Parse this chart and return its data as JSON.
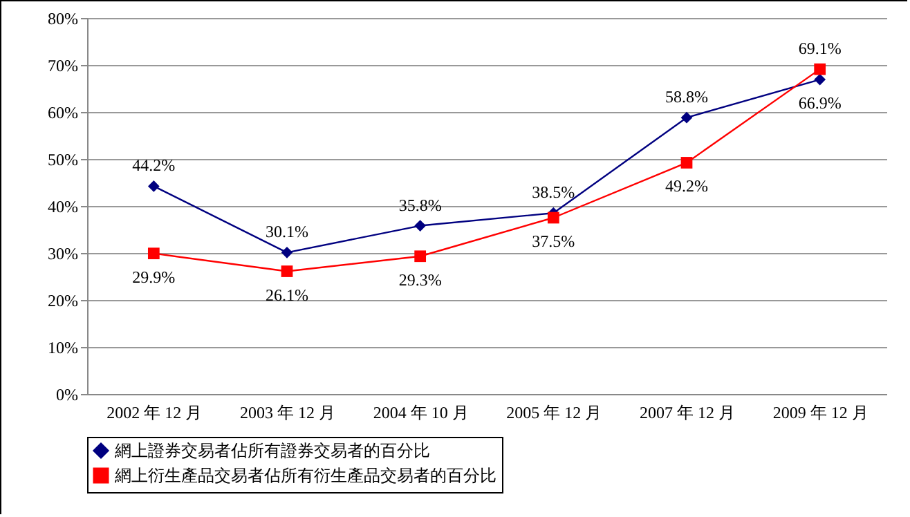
{
  "chart_data": {
    "type": "line",
    "categories": [
      "2002 年 12 月",
      "2003 年 12 月",
      "2004 年 10 月",
      "2005 年 12 月",
      "2007 年 12 月",
      "2009 年 12 月"
    ],
    "series": [
      {
        "name": "網上證券交易者佔所有證券交易者的百分比",
        "color": "#000080",
        "marker": "diamond",
        "values": [
          44.2,
          30.1,
          35.8,
          38.5,
          58.8,
          66.9
        ],
        "value_labels": [
          "44.2%",
          "30.1%",
          "35.8%",
          "38.5%",
          "58.8%",
          "66.9%"
        ]
      },
      {
        "name": "網上衍生產品交易者佔所有衍生產品交易者的百分比",
        "color": "#ff0000",
        "marker": "square",
        "values": [
          29.9,
          26.1,
          29.3,
          37.5,
          49.2,
          69.1
        ],
        "value_labels": [
          "29.9%",
          "26.1%",
          "29.3%",
          "37.5%",
          "49.2%",
          "69.1%"
        ]
      }
    ],
    "ylim": [
      0,
      80
    ],
    "yticks": [
      {
        "value": 0,
        "label": "0%"
      },
      {
        "value": 10,
        "label": "10%"
      },
      {
        "value": 20,
        "label": "20%"
      },
      {
        "value": 30,
        "label": "30%"
      },
      {
        "value": 40,
        "label": "40%"
      },
      {
        "value": 50,
        "label": "50%"
      },
      {
        "value": 60,
        "label": "60%"
      },
      {
        "value": 70,
        "label": "70%"
      },
      {
        "value": 80,
        "label": "80%"
      }
    ],
    "grid": "y",
    "legend": "bottom"
  }
}
